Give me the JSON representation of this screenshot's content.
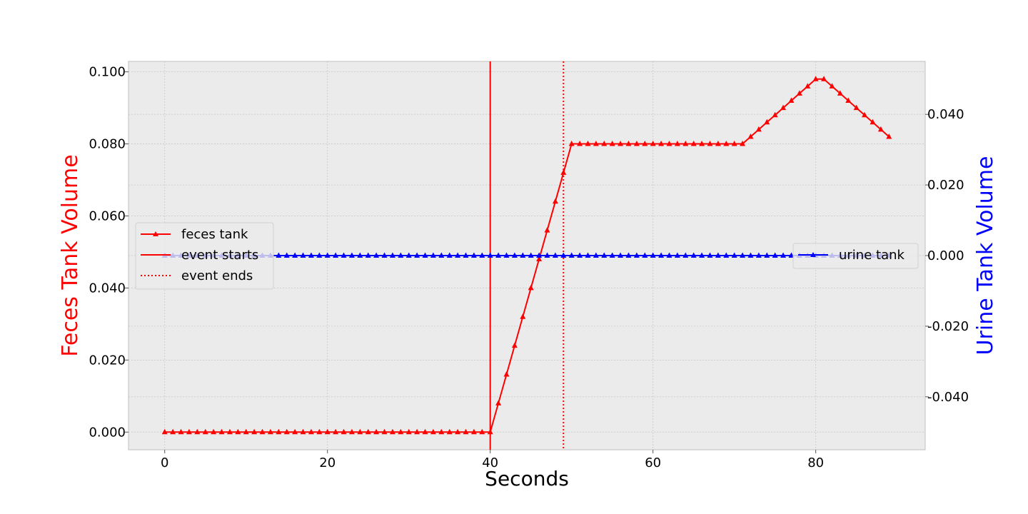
{
  "chart_data": {
    "type": "line",
    "xlabel": "Seconds",
    "ylabel_left": "Feces Tank Volume",
    "ylabel_right": "Urine Tank Volume",
    "xlim": [
      -4.45,
      93.45
    ],
    "ylim_left": [
      -0.0049,
      0.1029
    ],
    "ylim_right": [
      -0.055,
      0.055
    ],
    "x_ticks": [
      0,
      20,
      40,
      60,
      80
    ],
    "x_tick_labels": [
      "0",
      "20",
      "40",
      "60",
      "80"
    ],
    "y_left_ticks": [
      0.0,
      0.02,
      0.04,
      0.06,
      0.08,
      0.1
    ],
    "y_left_tick_labels": [
      "0.000",
      "0.020",
      "0.040",
      "0.060",
      "0.080",
      "0.100"
    ],
    "y_right_ticks": [
      -0.04,
      -0.02,
      0.0,
      0.02,
      0.04
    ],
    "y_right_tick_labels": [
      "-0.040",
      "-0.020",
      "0.000",
      "0.020",
      "0.040"
    ],
    "grid": true,
    "series": [
      {
        "name": "feces tank",
        "axis": "left",
        "color": "#ff0000",
        "marker": "triangle",
        "x": [
          0,
          1,
          2,
          3,
          4,
          5,
          6,
          7,
          8,
          9,
          10,
          11,
          12,
          13,
          14,
          15,
          16,
          17,
          18,
          19,
          20,
          21,
          22,
          23,
          24,
          25,
          26,
          27,
          28,
          29,
          30,
          31,
          32,
          33,
          34,
          35,
          36,
          37,
          38,
          39,
          40,
          41,
          42,
          43,
          44,
          45,
          46,
          47,
          48,
          49,
          50,
          51,
          52,
          53,
          54,
          55,
          56,
          57,
          58,
          59,
          60,
          61,
          62,
          63,
          64,
          65,
          66,
          67,
          68,
          69,
          70,
          71,
          72,
          73,
          74,
          75,
          76,
          77,
          78,
          79,
          80,
          81,
          82,
          83,
          84,
          85,
          86,
          87,
          88,
          89
        ],
        "y": [
          0,
          0,
          0,
          0,
          0,
          0,
          0,
          0,
          0,
          0,
          0,
          0,
          0,
          0,
          0,
          0,
          0,
          0,
          0,
          0,
          0,
          0,
          0,
          0,
          0,
          0,
          0,
          0,
          0,
          0,
          0,
          0,
          0,
          0,
          0,
          0,
          0,
          0,
          0,
          0,
          0,
          0.008,
          0.016,
          0.024,
          0.032,
          0.04,
          0.048,
          0.056,
          0.064,
          0.072,
          0.08,
          0.08,
          0.08,
          0.08,
          0.08,
          0.08,
          0.08,
          0.08,
          0.08,
          0.08,
          0.08,
          0.08,
          0.08,
          0.08,
          0.08,
          0.08,
          0.08,
          0.08,
          0.08,
          0.08,
          0.08,
          0.08,
          0.082,
          0.084,
          0.086,
          0.088,
          0.09,
          0.092,
          0.094,
          0.096,
          0.098,
          0.098,
          0.096,
          0.094,
          0.092,
          0.09,
          0.088,
          0.086,
          0.084,
          0.082
        ]
      },
      {
        "name": "urine tank",
        "axis": "right",
        "color": "#0000ff",
        "marker": "triangle",
        "x": [
          0,
          1,
          2,
          3,
          4,
          5,
          6,
          7,
          8,
          9,
          10,
          11,
          12,
          13,
          14,
          15,
          16,
          17,
          18,
          19,
          20,
          21,
          22,
          23,
          24,
          25,
          26,
          27,
          28,
          29,
          30,
          31,
          32,
          33,
          34,
          35,
          36,
          37,
          38,
          39,
          40,
          41,
          42,
          43,
          44,
          45,
          46,
          47,
          48,
          49,
          50,
          51,
          52,
          53,
          54,
          55,
          56,
          57,
          58,
          59,
          60,
          61,
          62,
          63,
          64,
          65,
          66,
          67,
          68,
          69,
          70,
          71,
          72,
          73,
          74,
          75,
          76,
          77,
          78,
          79,
          80,
          81,
          82,
          83,
          84,
          85,
          86,
          87,
          88,
          89
        ],
        "y": [
          0,
          0,
          0,
          0,
          0,
          0,
          0,
          0,
          0,
          0,
          0,
          0,
          0,
          0,
          0,
          0,
          0,
          0,
          0,
          0,
          0,
          0,
          0,
          0,
          0,
          0,
          0,
          0,
          0,
          0,
          0,
          0,
          0,
          0,
          0,
          0,
          0,
          0,
          0,
          0,
          0,
          0,
          0,
          0,
          0,
          0,
          0,
          0,
          0,
          0,
          0,
          0,
          0,
          0,
          0,
          0,
          0,
          0,
          0,
          0,
          0,
          0,
          0,
          0,
          0,
          0,
          0,
          0,
          0,
          0,
          0,
          0,
          0,
          0,
          0,
          0,
          0,
          0,
          0,
          0,
          0,
          0,
          0,
          0,
          0,
          0,
          0,
          0,
          0,
          0
        ]
      }
    ],
    "vlines": [
      {
        "name": "event starts",
        "x": 40,
        "color": "#ff0000",
        "style": "solid"
      },
      {
        "name": "event ends",
        "x": 49,
        "color": "#ff0000",
        "style": "dotted"
      }
    ],
    "legend_left": {
      "placement": "center-left",
      "entries": [
        "feces tank",
        "event starts",
        "event ends"
      ]
    },
    "legend_right": {
      "placement": "center-right",
      "entries": [
        "urine tank"
      ]
    },
    "colors": {
      "plot_background": "#ebebeb",
      "grid": "#c8c8c8",
      "left_axis_label": "#ff0000",
      "right_axis_label": "#0000ff"
    }
  }
}
